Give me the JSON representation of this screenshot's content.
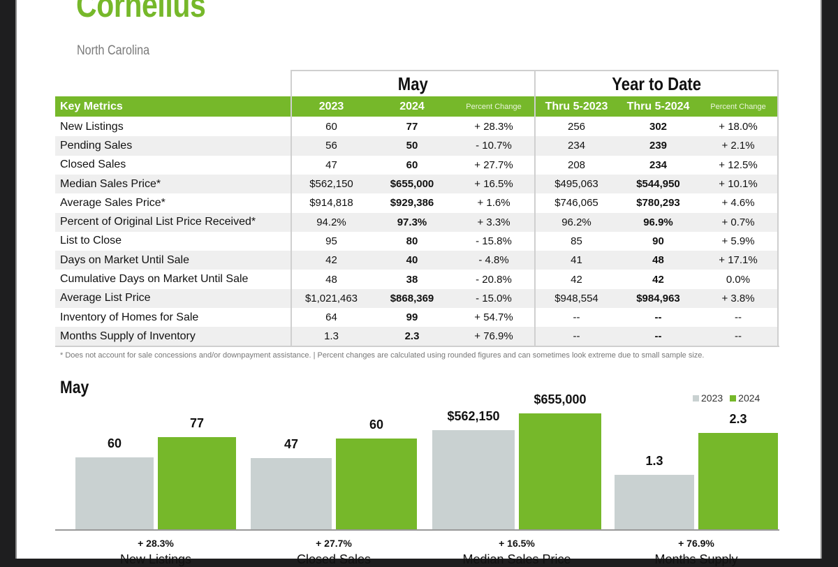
{
  "title": "Cornelius",
  "subtitle": "North Carolina",
  "table": {
    "group_may": "May",
    "group_ytd": "Year to Date",
    "headers": [
      "Key Metrics",
      "2023",
      "2024",
      "Percent Change",
      "Thru 5-2023",
      "Thru 5-2024",
      "Percent Change"
    ],
    "rows": [
      [
        "New Listings",
        "60",
        "77",
        "+ 28.3%",
        "256",
        "302",
        "+ 18.0%"
      ],
      [
        "Pending Sales",
        "56",
        "50",
        "- 10.7%",
        "234",
        "239",
        "+ 2.1%"
      ],
      [
        "Closed Sales",
        "47",
        "60",
        "+ 27.7%",
        "208",
        "234",
        "+ 12.5%"
      ],
      [
        "Median Sales Price*",
        "$562,150",
        "$655,000",
        "+ 16.5%",
        "$495,063",
        "$544,950",
        "+ 10.1%"
      ],
      [
        "Average Sales Price*",
        "$914,818",
        "$929,386",
        "+ 1.6%",
        "$746,065",
        "$780,293",
        "+ 4.6%"
      ],
      [
        "Percent of Original List Price Received*",
        "94.2%",
        "97.3%",
        "+ 3.3%",
        "96.2%",
        "96.9%",
        "+ 0.7%"
      ],
      [
        "List to Close",
        "95",
        "80",
        "- 15.8%",
        "85",
        "90",
        "+ 5.9%"
      ],
      [
        "Days on Market Until Sale",
        "42",
        "40",
        "- 4.8%",
        "41",
        "48",
        "+ 17.1%"
      ],
      [
        "Cumulative Days on Market Until Sale",
        "48",
        "38",
        "- 20.8%",
        "42",
        "42",
        "0.0%"
      ],
      [
        "Average List Price",
        "$1,021,463",
        "$868,369",
        "- 15.0%",
        "$948,554",
        "$984,963",
        "+ 3.8%"
      ],
      [
        "Inventory of Homes for Sale",
        "64",
        "99",
        "+ 54.7%",
        "--",
        "--",
        "--"
      ],
      [
        "Months Supply of Inventory",
        "1.3",
        "2.3",
        "+ 76.9%",
        "--",
        "--",
        "--"
      ]
    ],
    "footnote": "* Does not account for sale concessions and/or downpayment assistance.  |  Percent changes are calculated using rounded figures and can sometimes look extreme due to small sample size."
  },
  "colors": {
    "accent": "#76b82a",
    "series_2023": "#c9d1d1",
    "series_2024": "#76b82a"
  },
  "chart_data": {
    "type": "bar",
    "title": "May",
    "categories": [
      "New Listings",
      "Closed Sales",
      "Median Sales Price",
      "Months Supply"
    ],
    "series": [
      {
        "name": "2023",
        "values": [
          60,
          47,
          562150,
          1.3
        ],
        "labels": [
          "60",
          "47",
          "$562,150",
          "1.3"
        ]
      },
      {
        "name": "2024",
        "values": [
          77,
          60,
          655000,
          2.3
        ],
        "labels": [
          "77",
          "60",
          "$655,000",
          "2.3"
        ]
      }
    ],
    "percent_change": [
      "+ 28.3%",
      "+ 27.7%",
      "+ 16.5%",
      "+ 76.9%"
    ],
    "legend": "top-right",
    "grid": false
  }
}
